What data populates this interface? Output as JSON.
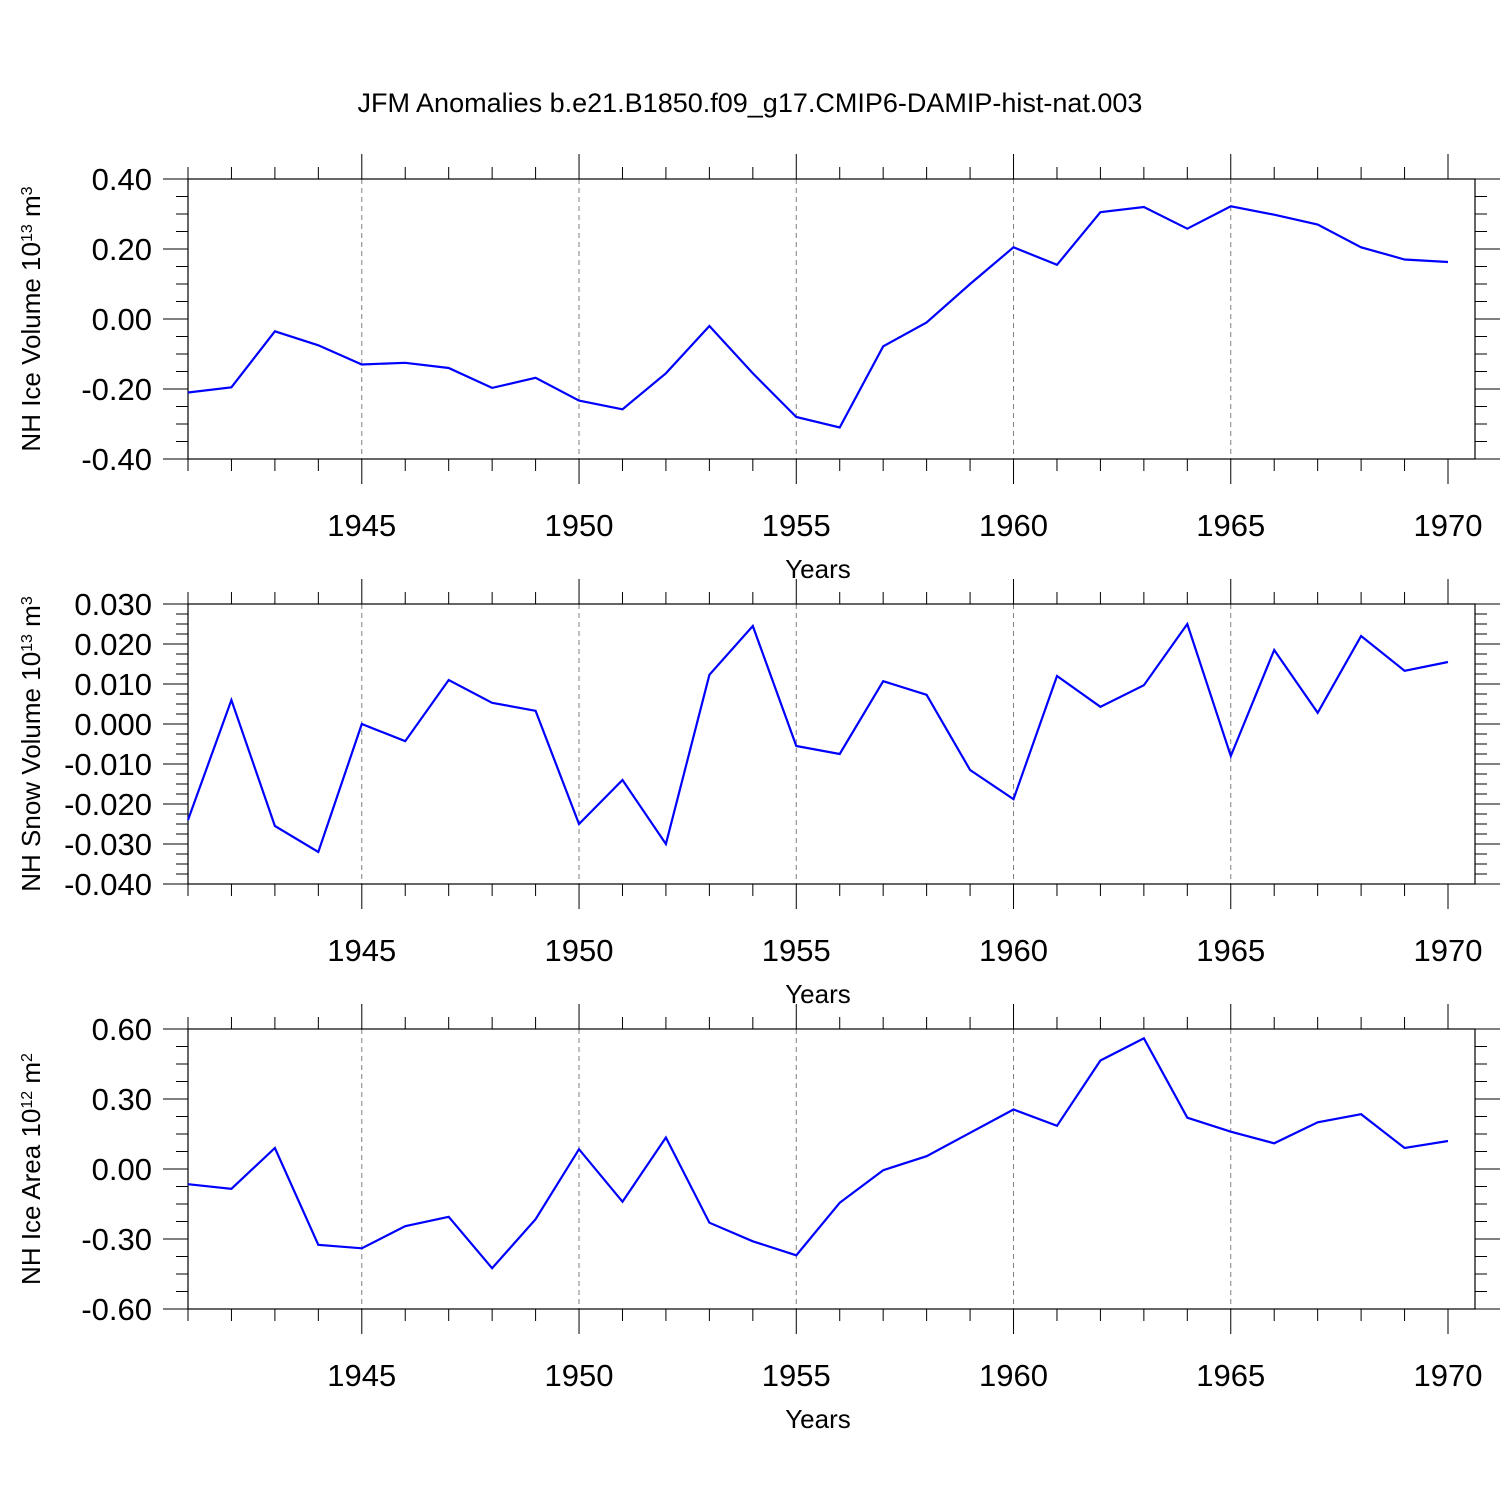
{
  "title": "JFM Anomalies b.e21.B1850.f09_g17.CMIP6-DAMIP-hist-nat.003",
  "colors": {
    "line": "#0000ff",
    "axis": "#000000",
    "grid": "#808080"
  },
  "chart_data": [
    {
      "type": "line",
      "name": "ice-volume",
      "xlabel": "Years",
      "ylabel": {
        "text": "NH Ice Volume 10",
        "sup1": "13",
        "mid": " m",
        "sup2": "3"
      },
      "xlim": [
        1941,
        1970
      ],
      "ylim": [
        -0.4,
        0.4
      ],
      "xticks": [
        1945,
        1950,
        1955,
        1960,
        1965,
        1970
      ],
      "yticks": [
        -0.4,
        -0.2,
        0.0,
        0.2,
        0.4
      ],
      "ytick_labels": [
        "-0.40",
        "-0.20",
        "0.00",
        "0.20",
        "0.40"
      ],
      "series": [
        {
          "name": "NH Ice Volume",
          "x": [
            1941,
            1942,
            1943,
            1944,
            1945,
            1946,
            1947,
            1948,
            1949,
            1950,
            1951,
            1952,
            1953,
            1954,
            1955,
            1956,
            1957,
            1958,
            1959,
            1960,
            1961,
            1962,
            1963,
            1964,
            1965,
            1966,
            1967,
            1968,
            1969,
            1970
          ],
          "values": [
            -0.21,
            -0.195,
            -0.035,
            -0.075,
            -0.13,
            -0.125,
            -0.14,
            -0.197,
            -0.168,
            -0.233,
            -0.258,
            -0.155,
            -0.02,
            -0.155,
            -0.28,
            -0.31,
            -0.078,
            -0.01,
            0.1,
            0.205,
            0.155,
            0.305,
            0.32,
            0.258,
            0.322,
            0.298,
            0.27,
            0.205,
            0.17,
            0.163
          ]
        }
      ]
    },
    {
      "type": "line",
      "name": "snow-volume",
      "xlabel": "Years",
      "ylabel": {
        "text": "NH Snow Volume 10",
        "sup1": "13",
        "mid": " m",
        "sup2": "3"
      },
      "xlim": [
        1941,
        1970
      ],
      "ylim": [
        -0.04,
        0.03
      ],
      "xticks": [
        1945,
        1950,
        1955,
        1960,
        1965,
        1970
      ],
      "yticks": [
        -0.04,
        -0.03,
        -0.02,
        -0.01,
        0.0,
        0.01,
        0.02,
        0.03
      ],
      "ytick_labels": [
        "-0.040",
        "-0.030",
        "-0.020",
        "-0.010",
        "0.000",
        "0.010",
        "0.020",
        "0.030"
      ],
      "series": [
        {
          "name": "NH Snow Volume",
          "x": [
            1941,
            1942,
            1943,
            1944,
            1945,
            1946,
            1947,
            1948,
            1949,
            1950,
            1951,
            1952,
            1953,
            1954,
            1955,
            1956,
            1957,
            1958,
            1959,
            1960,
            1961,
            1962,
            1963,
            1964,
            1965,
            1966,
            1967,
            1968,
            1969,
            1970
          ],
          "values": [
            -0.024,
            0.006,
            -0.0255,
            -0.032,
            0.0,
            -0.0043,
            0.011,
            0.0053,
            0.0033,
            -0.025,
            -0.014,
            -0.03,
            0.0123,
            0.0245,
            -0.0055,
            -0.0075,
            0.0107,
            0.0073,
            -0.0115,
            -0.0188,
            0.012,
            0.0043,
            0.0097,
            0.025,
            -0.008,
            0.0185,
            0.0028,
            0.022,
            0.0133,
            0.0155
          ]
        }
      ]
    },
    {
      "type": "line",
      "name": "ice-area",
      "xlabel": "Years",
      "ylabel": {
        "text": "NH Ice Area 10",
        "sup1": "12",
        "mid": " m",
        "sup2": "2"
      },
      "xlim": [
        1941,
        1970
      ],
      "ylim": [
        -0.6,
        0.6
      ],
      "xticks": [
        1945,
        1950,
        1955,
        1960,
        1965,
        1970
      ],
      "yticks": [
        -0.6,
        -0.3,
        0.0,
        0.3,
        0.6
      ],
      "ytick_labels": [
        "-0.60",
        "-0.30",
        "0.00",
        "0.30",
        "0.60"
      ],
      "series": [
        {
          "name": "NH Ice Area",
          "x": [
            1941,
            1942,
            1943,
            1944,
            1945,
            1946,
            1947,
            1948,
            1949,
            1950,
            1951,
            1952,
            1953,
            1954,
            1955,
            1956,
            1957,
            1958,
            1959,
            1960,
            1961,
            1962,
            1963,
            1964,
            1965,
            1966,
            1967,
            1968,
            1969,
            1970
          ],
          "values": [
            -0.065,
            -0.085,
            0.09,
            -0.325,
            -0.34,
            -0.245,
            -0.205,
            -0.425,
            -0.215,
            0.085,
            -0.14,
            0.135,
            -0.23,
            -0.31,
            -0.37,
            -0.145,
            -0.005,
            0.055,
            0.155,
            0.255,
            0.185,
            0.465,
            0.56,
            0.22,
            0.16,
            0.11,
            0.2,
            0.235,
            0.09,
            0.12
          ]
        }
      ]
    }
  ]
}
